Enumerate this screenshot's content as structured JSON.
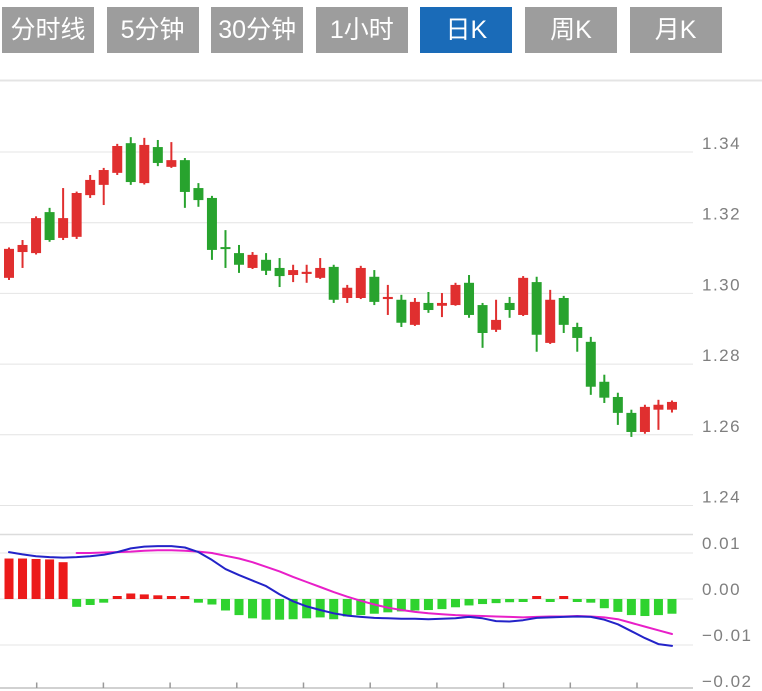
{
  "toolbar": {
    "tabs": [
      {
        "name": "tab-timeline",
        "label": "分时线",
        "active": false
      },
      {
        "name": "tab-5min",
        "label": "5分钟",
        "active": false
      },
      {
        "name": "tab-30min",
        "label": "30分钟",
        "active": false
      },
      {
        "name": "tab-1hour",
        "label": "1小时",
        "active": false
      },
      {
        "name": "tab-daily-k",
        "label": "日K",
        "active": true
      },
      {
        "name": "tab-weekly-k",
        "label": "周K",
        "active": false
      },
      {
        "name": "tab-monthly-k",
        "label": "月K",
        "active": false
      }
    ]
  },
  "colors": {
    "tab_bg": "#9d9d9d",
    "tab_active_bg": "#1a6bb8",
    "tab_text": "#ffffff",
    "up": "#e02f2f",
    "down": "#28a32e",
    "hist_up": "#ec1a1a",
    "hist_down": "#2fd32f",
    "dif_line": "#2323c8",
    "dea_line": "#e81fc8",
    "grid": "#e4e4e4",
    "separator": "#dcdcdc",
    "axis": "#c2c2c2",
    "tick": "#999999",
    "label": "#7f7f7f"
  },
  "chart_data": {
    "type": "candlestick",
    "title": "",
    "legend_position": "none",
    "grid": true,
    "panels": [
      {
        "name": "price",
        "ylabel": "",
        "ylim": [
          1.225,
          1.359
        ],
        "y_ticks": [
          "1.34",
          "1.32",
          "1.30",
          "1.28",
          "1.26",
          "1.24"
        ],
        "y_tick_values": [
          1.34,
          1.32,
          1.3,
          1.28,
          1.26,
          1.24
        ],
        "candles_ohlc": [
          [
            1.3044,
            1.313,
            1.3038,
            1.3126
          ],
          [
            1.3117,
            1.3151,
            1.3072,
            1.3137
          ],
          [
            1.3114,
            1.3218,
            1.311,
            1.3213
          ],
          [
            1.323,
            1.3242,
            1.3146,
            1.3151
          ],
          [
            1.3157,
            1.3298,
            1.3151,
            1.3213
          ],
          [
            1.316,
            1.3288,
            1.3154,
            1.3284
          ],
          [
            1.3278,
            1.3335,
            1.327,
            1.3321
          ],
          [
            1.3307,
            1.3355,
            1.325,
            1.3349
          ],
          [
            1.3341,
            1.3423,
            1.3335,
            1.3417
          ],
          [
            1.3425,
            1.3442,
            1.3307,
            1.3315
          ],
          [
            1.3312,
            1.344,
            1.3308,
            1.342
          ],
          [
            1.3414,
            1.3434,
            1.336,
            1.3369
          ],
          [
            1.3358,
            1.3428,
            1.3355,
            1.3377
          ],
          [
            1.3377,
            1.3383,
            1.3242,
            1.3287
          ],
          [
            1.3298,
            1.3312,
            1.3245,
            1.3264
          ],
          [
            1.327,
            1.3276,
            1.3095,
            1.3123
          ],
          [
            1.3131,
            1.3179,
            1.3072,
            1.3126
          ],
          [
            1.3114,
            1.3137,
            1.3058,
            1.3081
          ],
          [
            1.3072,
            1.3117,
            1.3069,
            1.3109
          ],
          [
            1.3095,
            1.3114,
            1.3052,
            1.3064
          ],
          [
            1.3072,
            1.31,
            1.3018,
            1.3049
          ],
          [
            1.3052,
            1.3081,
            1.3032,
            1.3066
          ],
          [
            1.3055,
            1.3081,
            1.303,
            1.3061
          ],
          [
            1.3044,
            1.31,
            1.3041,
            1.3072
          ],
          [
            1.3075,
            1.3081,
            1.2973,
            1.2982
          ],
          [
            1.2987,
            1.3024,
            1.2973,
            1.3016
          ],
          [
            1.2987,
            1.3078,
            1.2984,
            1.3072
          ],
          [
            1.3047,
            1.3066,
            1.2967,
            1.2976
          ],
          [
            1.2984,
            1.3024,
            1.2939,
            1.299
          ],
          [
            1.2982,
            1.2996,
            1.2905,
            1.2917
          ],
          [
            1.2911,
            1.2987,
            1.2908,
            1.2976
          ],
          [
            1.2973,
            1.3004,
            1.2945,
            1.2953
          ],
          [
            1.2965,
            1.3001,
            1.2933,
            1.2973
          ],
          [
            1.2967,
            1.303,
            1.2965,
            1.3024
          ],
          [
            1.303,
            1.3052,
            1.2931,
            1.2939
          ],
          [
            1.2967,
            1.2973,
            1.2846,
            1.2888
          ],
          [
            1.2897,
            1.2982,
            1.2891,
            1.2925
          ],
          [
            1.2973,
            1.299,
            1.2931,
            1.2953
          ],
          [
            1.2939,
            1.3049,
            1.2936,
            1.3044
          ],
          [
            1.3032,
            1.3047,
            1.2835,
            1.2883
          ],
          [
            1.286,
            1.301,
            1.2857,
            1.2982
          ],
          [
            1.2987,
            1.2993,
            1.2888,
            1.2911
          ],
          [
            1.2905,
            1.2917,
            1.2835,
            1.2874
          ],
          [
            1.2863,
            1.2877,
            1.2713,
            1.2736
          ],
          [
            1.275,
            1.277,
            1.269,
            1.2705
          ],
          [
            1.2707,
            1.2719,
            1.2628,
            1.2662
          ],
          [
            1.2662,
            1.2671,
            1.2594,
            1.2608
          ],
          [
            1.2608,
            1.2685,
            1.2603,
            1.2679
          ],
          [
            1.2671,
            1.2699,
            1.2614,
            1.2685
          ],
          [
            1.2671,
            1.2697,
            1.2663,
            1.2693
          ]
        ]
      },
      {
        "name": "macd",
        "ylabel": "",
        "ylim": [
          -0.021,
          0.012
        ],
        "y_ticks": [
          "0.01",
          "0.00",
          "−0.01",
          "−0.02"
        ],
        "y_tick_values": [
          0.01,
          0,
          -0.01,
          -0.02
        ],
        "histogram": [
          0.0088,
          0.0088,
          0.0087,
          0.0086,
          0.008,
          -0.0017,
          -0.0013,
          -0.0008,
          0.0006,
          0.0012,
          0.001,
          0.0008,
          0.0006,
          0.0003,
          -0.0008,
          -0.0012,
          -0.0025,
          -0.0035,
          -0.0042,
          -0.0045,
          -0.0045,
          -0.0044,
          -0.0042,
          -0.004,
          -0.0044,
          -0.0038,
          -0.0035,
          -0.0032,
          -0.0029,
          -0.0027,
          -0.0025,
          -0.0024,
          -0.0022,
          -0.0018,
          -0.0014,
          -0.0011,
          -0.0009,
          -0.0007,
          -0.0005,
          0.0004,
          -0.0005,
          0.0003,
          -0.0003,
          -0.0008,
          -0.002,
          -0.0028,
          -0.0035,
          -0.0037,
          -0.0035,
          -0.0032
        ],
        "series": [
          {
            "name": "DIF",
            "color_key": "dif_line",
            "values": [
              0.0102,
              0.0097,
              0.0093,
              0.0091,
              0.009,
              0.0091,
              0.0093,
              0.0096,
              0.0102,
              0.011,
              0.0114,
              0.0115,
              0.0115,
              0.0112,
              0.0102,
              0.0085,
              0.0065,
              0.0052,
              0.004,
              0.0028,
              0.001,
              -0.0005,
              -0.0016,
              -0.0024,
              -0.0031,
              -0.0036,
              -0.0039,
              -0.0041,
              -0.0042,
              -0.0043,
              -0.0043,
              -0.0044,
              -0.0043,
              -0.0042,
              -0.0039,
              -0.0042,
              -0.0048,
              -0.0049,
              -0.0046,
              -0.0041,
              -0.004,
              -0.0039,
              -0.0038,
              -0.0039,
              -0.0045,
              -0.0055,
              -0.007,
              -0.0085,
              -0.0098,
              -0.0102
            ]
          },
          {
            "name": "DEA",
            "color_key": "dea_line",
            "values": [
              null,
              null,
              null,
              null,
              null,
              0.01,
              0.01,
              0.0101,
              0.0102,
              0.0103,
              0.0105,
              0.0106,
              0.0106,
              0.0105,
              0.0103,
              0.01,
              0.0094,
              0.0088,
              0.008,
              0.007,
              0.006,
              0.0048,
              0.0037,
              0.0026,
              0.0015,
              0.0005,
              -0.0004,
              -0.0012,
              -0.0019,
              -0.0024,
              -0.0028,
              -0.0031,
              -0.0033,
              -0.0035,
              -0.0036,
              -0.0037,
              -0.0038,
              -0.0039,
              -0.004,
              -0.0039,
              -0.0038,
              -0.0038,
              -0.0037,
              -0.0038,
              -0.004,
              -0.0044,
              -0.0052,
              -0.006,
              -0.0068,
              -0.0076
            ]
          }
        ]
      }
    ]
  }
}
